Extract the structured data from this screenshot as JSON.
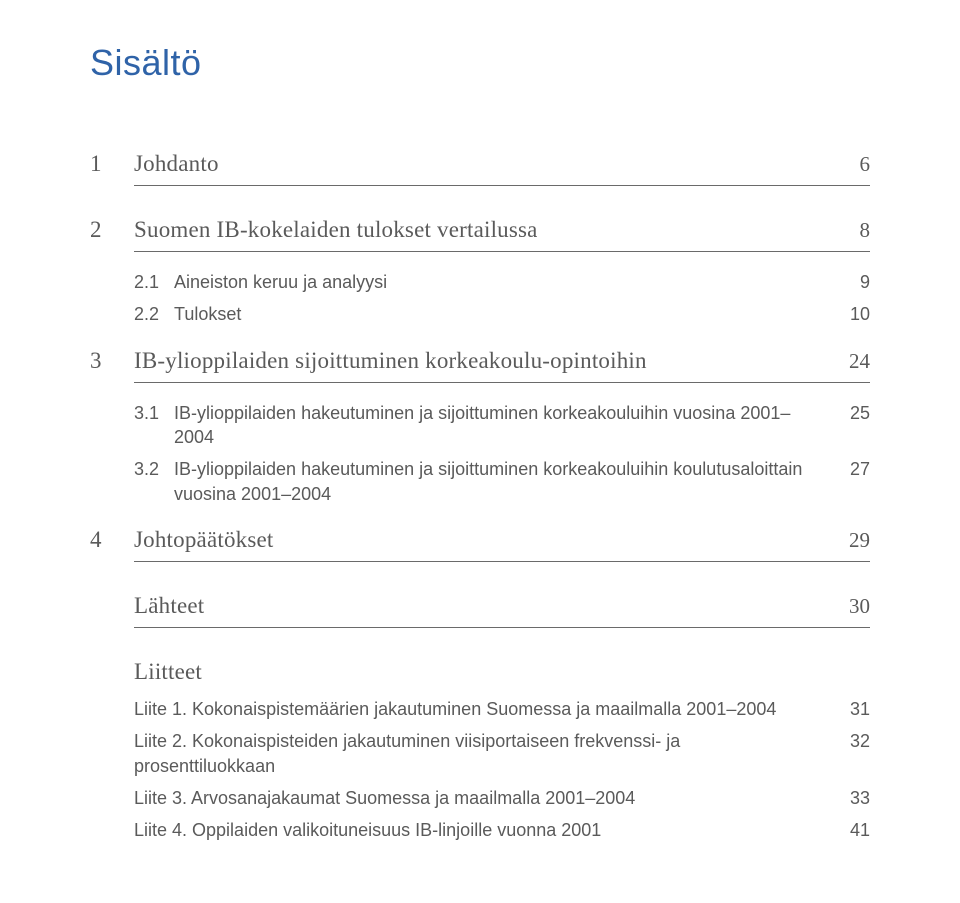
{
  "title": "Sisältö",
  "toc": {
    "items": [
      {
        "num": "1",
        "label": "Johdanto",
        "page": "6",
        "type": "top",
        "underline": true
      },
      {
        "num": "2",
        "label": "Suomen IB-kokelaiden tulokset vertailussa",
        "page": "8",
        "type": "top",
        "underline": true
      },
      {
        "subnum": "2.1",
        "label": "Aineiston keruu ja analyysi",
        "page": "9",
        "type": "sub"
      },
      {
        "subnum": "2.2",
        "label": "Tulokset",
        "page": "10",
        "type": "sub"
      },
      {
        "num": "3",
        "label": "IB-ylioppilaiden sijoittuminen korkeakoulu-opintoihin",
        "page": "24",
        "type": "top",
        "underline": true
      },
      {
        "subnum": "3.1",
        "label": "IB-ylioppilaiden hakeutuminen ja sijoittuminen korkeakouluihin vuosina 2001–2004",
        "page": "25",
        "type": "sub"
      },
      {
        "subnum": "3.2",
        "label": "IB-ylioppilaiden hakeutuminen ja sijoittuminen korkeakouluihin koulutusaloittain vuosina 2001–2004",
        "page": "27",
        "type": "sub"
      },
      {
        "num": "4",
        "label": "Johtopäätökset",
        "page": "29",
        "type": "top",
        "underline": true
      },
      {
        "num": "",
        "label": "Lähteet",
        "page": "30",
        "type": "top",
        "underline": true
      },
      {
        "num": "",
        "label": "Liitteet",
        "page": "",
        "type": "top",
        "underline": false
      }
    ],
    "appendices": [
      {
        "label": "Liite 1. Kokonaispistemäärien jakautuminen Suomessa ja maailmalla 2001–2004",
        "page": "31"
      },
      {
        "label": "Liite 2. Kokonaispisteiden jakautuminen viisiportaiseen frekvenssi- ja prosenttiluokkaan",
        "page": "32"
      },
      {
        "label": "Liite 3. Arvosanajakaumat Suomessa ja maailmalla 2001–2004",
        "page": "33"
      },
      {
        "label": "Liite 4. Oppilaiden valikoituneisuus IB-linjoille vuonna 2001",
        "page": "41"
      }
    ]
  },
  "colors": {
    "title": "#2f63a8",
    "text": "#5a5a5a",
    "underline": "#6a6a6a",
    "background": "#ffffff"
  },
  "typography": {
    "title_fontsize": 36,
    "toc_top_fontsize": 23,
    "toc_sub_fontsize": 18,
    "top_font_family": "serif",
    "sub_font_family": "sans-serif"
  }
}
